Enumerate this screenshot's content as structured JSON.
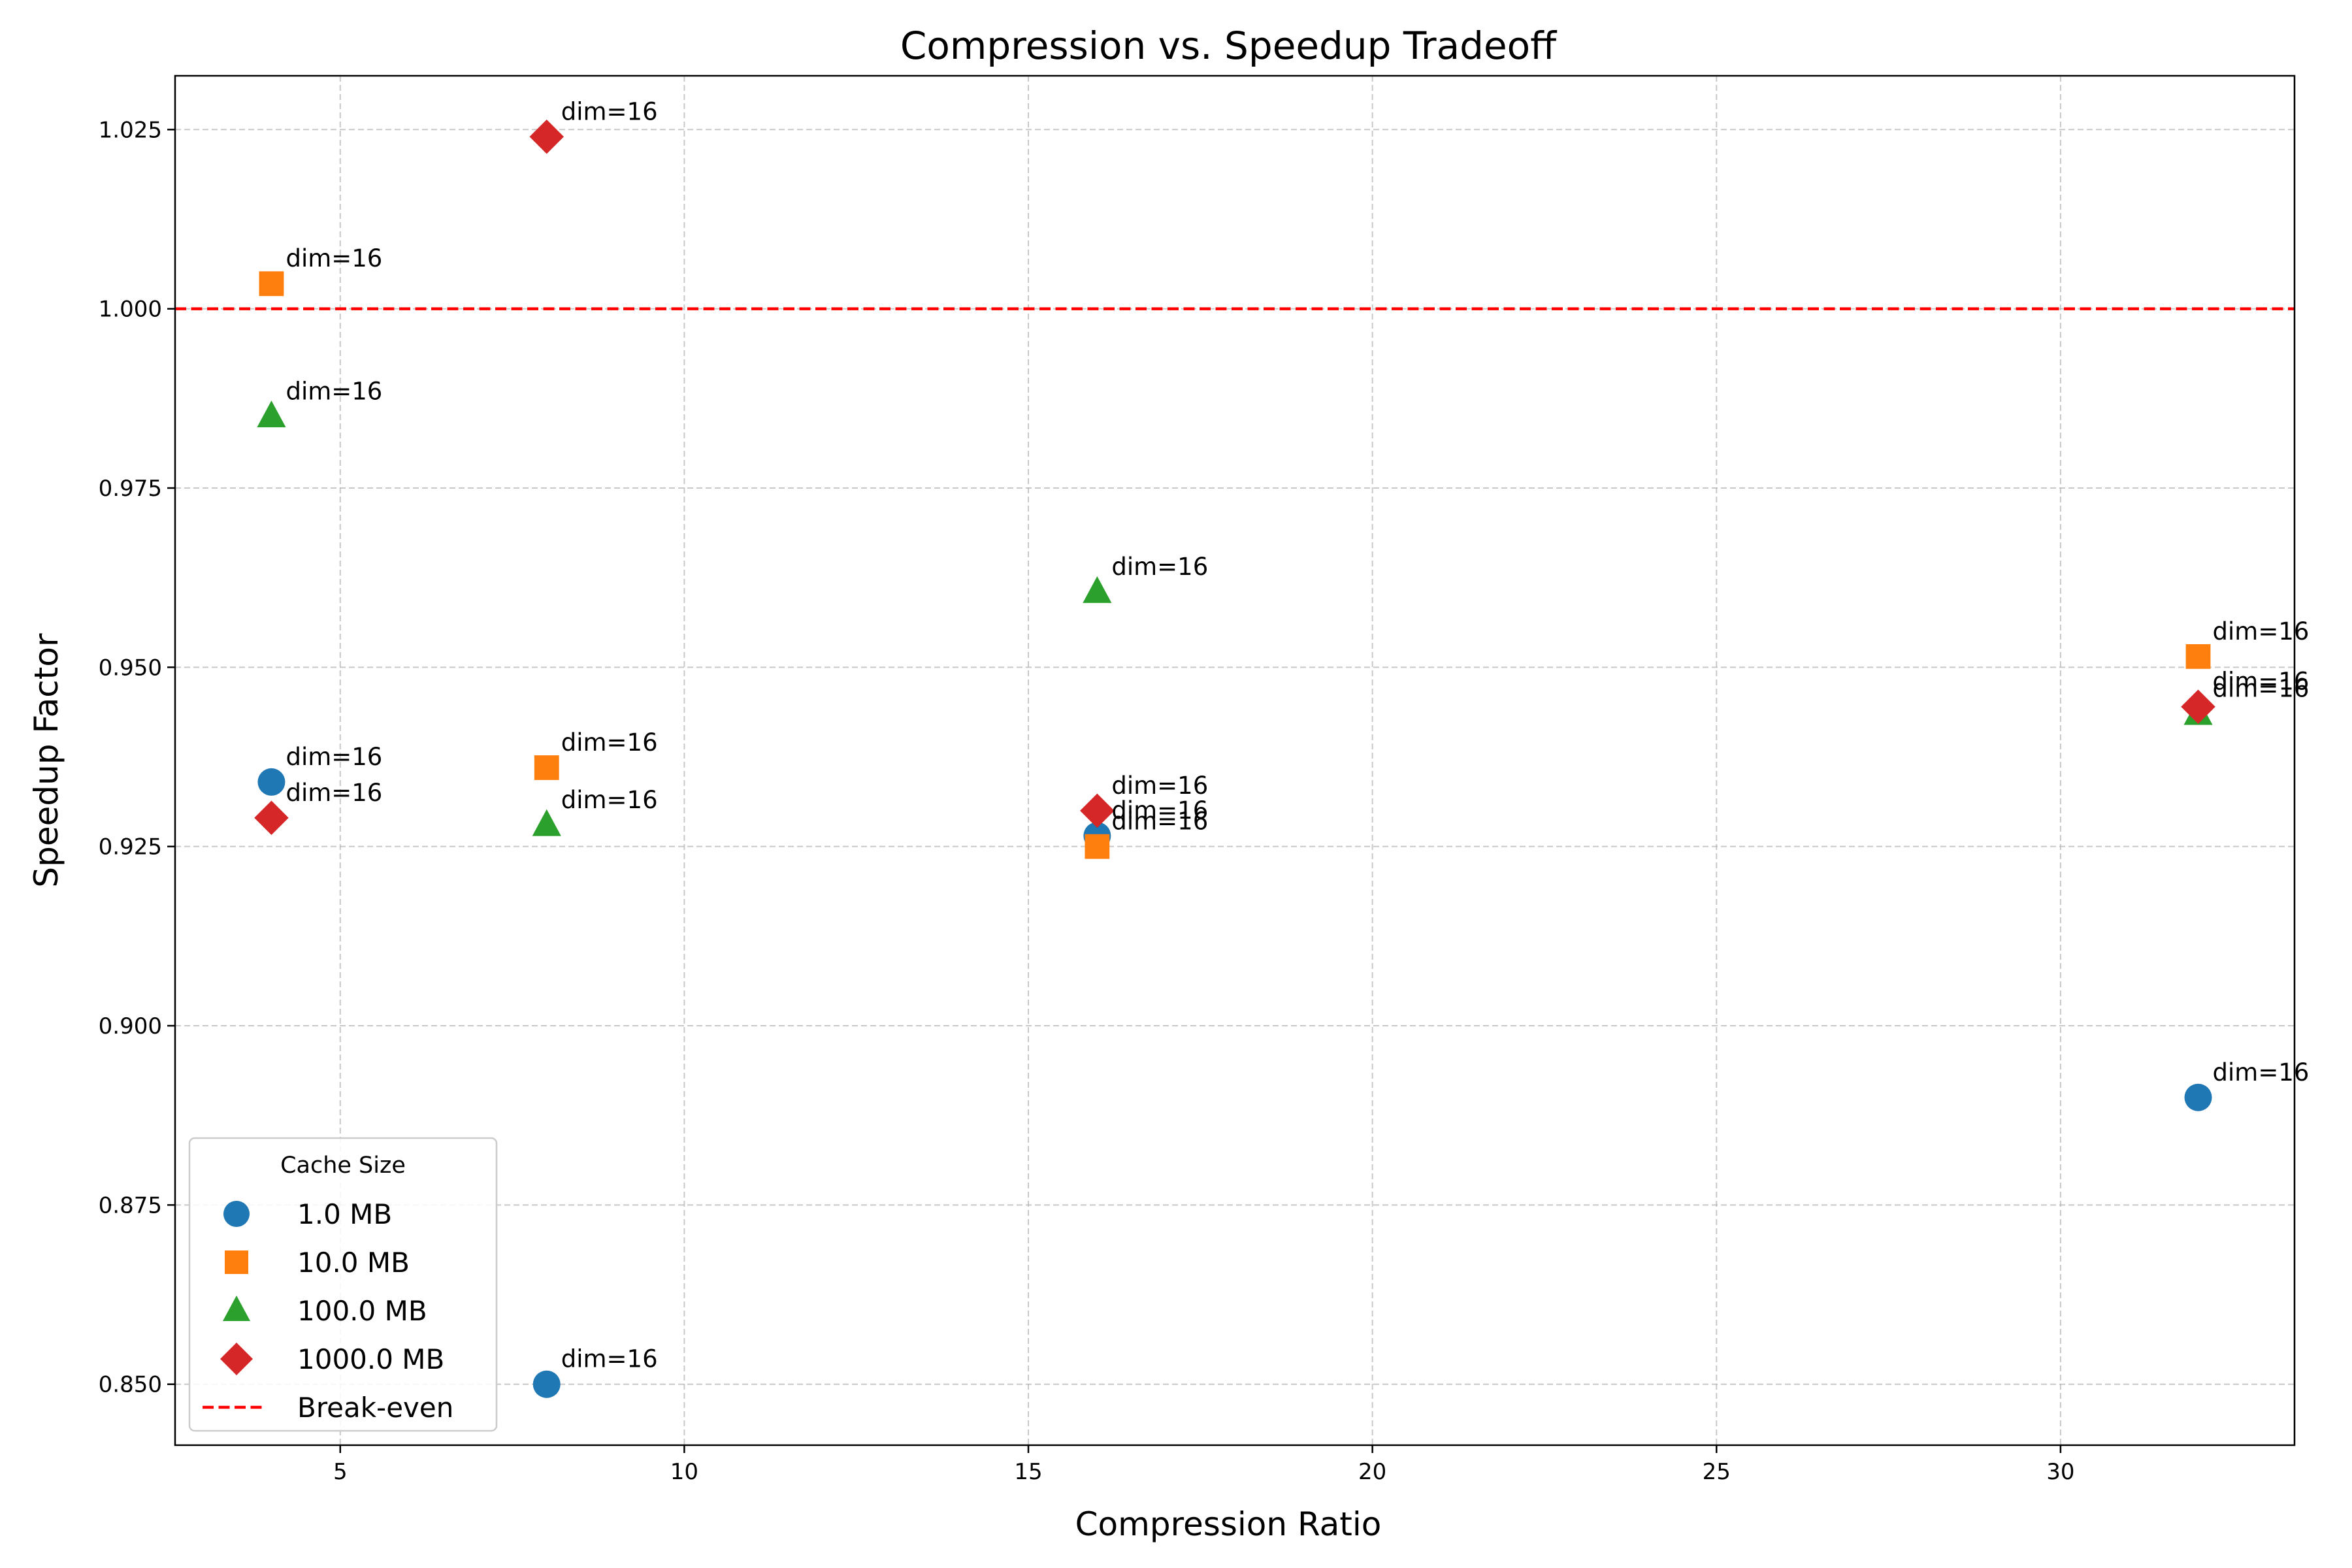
{
  "chart_data": {
    "type": "scatter",
    "title": "Compression vs. Speedup Tradeoff",
    "xlabel": "Compression Ratio",
    "ylabel": "Speedup Factor",
    "xlim": [
      2.6,
      33.4
    ],
    "ylim": [
      0.8415,
      1.0325
    ],
    "xticks": [
      5,
      10,
      15,
      20,
      25,
      30
    ],
    "yticks": [
      0.85,
      0.875,
      0.9,
      0.925,
      0.95,
      0.975,
      1.0,
      1.025
    ],
    "xtick_labels": [
      "5",
      "10",
      "15",
      "20",
      "25",
      "30"
    ],
    "ytick_labels": [
      "0.850",
      "0.875",
      "0.900",
      "0.925",
      "0.950",
      "0.975",
      "1.000",
      "1.025"
    ],
    "grid": true,
    "legend_title": "Cache Size",
    "legend_position": "bottom-left",
    "series": [
      {
        "name": "1.0 MB",
        "marker": "circle",
        "color": "#1f77b4",
        "points": [
          {
            "x": 4,
            "y": 0.934,
            "label": "dim=16"
          },
          {
            "x": 8,
            "y": 0.85,
            "label": "dim=16"
          },
          {
            "x": 16,
            "y": 0.9265,
            "label": "dim=16"
          },
          {
            "x": 32,
            "y": 0.89,
            "label": "dim=16"
          }
        ]
      },
      {
        "name": "10.0 MB",
        "marker": "square",
        "color": "#ff7f0e",
        "points": [
          {
            "x": 4,
            "y": 1.0035,
            "label": "dim=16"
          },
          {
            "x": 8,
            "y": 0.936,
            "label": "dim=16"
          },
          {
            "x": 16,
            "y": 0.925,
            "label": "dim=16"
          },
          {
            "x": 32,
            "y": 0.9515,
            "label": "dim=16"
          }
        ]
      },
      {
        "name": "100.0 MB",
        "marker": "triangle",
        "color": "#2ca02c",
        "points": [
          {
            "x": 4,
            "y": 0.985,
            "label": "dim=16"
          },
          {
            "x": 8,
            "y": 0.928,
            "label": "dim=16"
          },
          {
            "x": 16,
            "y": 0.9605,
            "label": "dim=16"
          },
          {
            "x": 32,
            "y": 0.9435,
            "label": "dim=16"
          }
        ]
      },
      {
        "name": "1000.0 MB",
        "marker": "diamond",
        "color": "#d62728",
        "points": [
          {
            "x": 4,
            "y": 0.929,
            "label": "dim=16"
          },
          {
            "x": 8,
            "y": 1.024,
            "label": "dim=16"
          },
          {
            "x": 16,
            "y": 0.93,
            "label": "dim=16"
          },
          {
            "x": 32,
            "y": 0.9445,
            "label": "dim=16"
          }
        ]
      }
    ],
    "reference_line": {
      "name": "Break-even",
      "y": 1.0,
      "color": "#ff0000",
      "style": "dashed"
    }
  }
}
